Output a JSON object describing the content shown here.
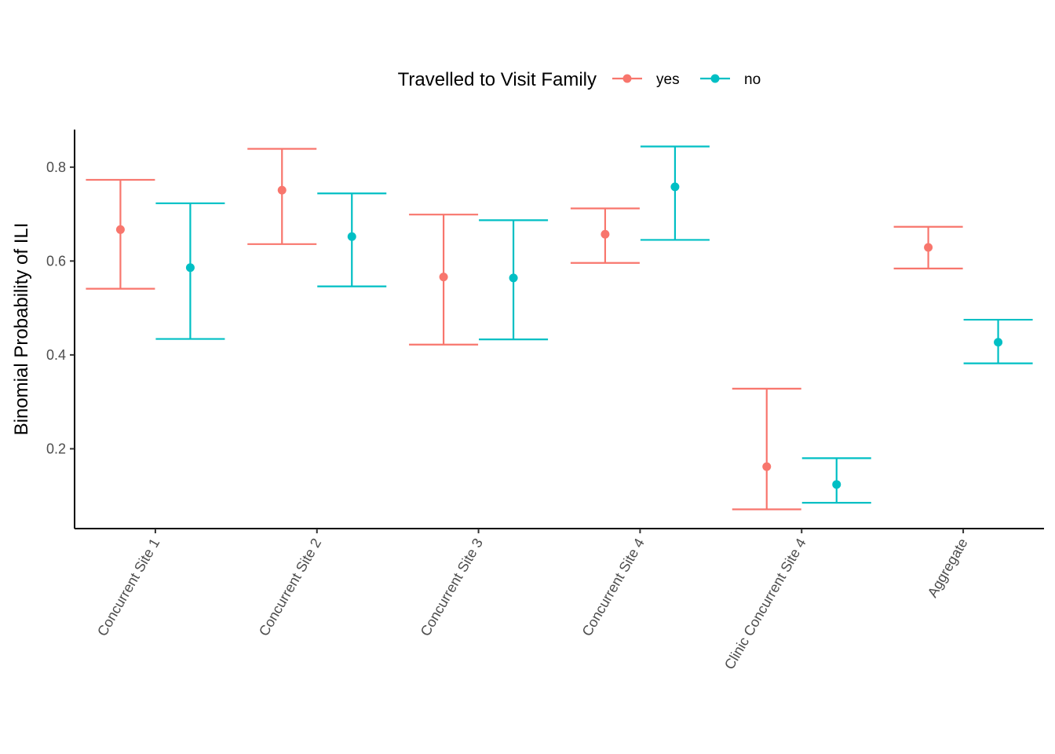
{
  "chart_data": {
    "type": "scatter",
    "subtype": "point-with-error-bars",
    "title": "",
    "xlabel": "",
    "ylabel": "Binomial Probability of ILI",
    "ylim": [
      0.03,
      0.88
    ],
    "yticks": [
      "0.2",
      "0.4",
      "0.6",
      "0.8"
    ],
    "grid": false,
    "legend": {
      "title": "Travelled to Visit Family",
      "position": "top"
    },
    "categories": [
      "Concurrent Site 1",
      "Concurrent Site 2",
      "Concurrent Site 3",
      "Concurrent Site 4",
      "Clinic Concurrent Site 4",
      "Aggregate"
    ],
    "series": [
      {
        "name": "yes",
        "color": "#F8766D",
        "values": [
          0.667,
          0.751,
          0.566,
          0.657,
          0.162,
          0.629
        ],
        "lower": [
          0.541,
          0.636,
          0.422,
          0.596,
          0.071,
          0.584
        ],
        "upper": [
          0.773,
          0.839,
          0.699,
          0.712,
          0.328,
          0.673
        ]
      },
      {
        "name": "no",
        "color": "#00BFC4",
        "values": [
          0.586,
          0.652,
          0.564,
          0.758,
          0.124,
          0.427
        ],
        "lower": [
          0.434,
          0.546,
          0.433,
          0.645,
          0.085,
          0.382
        ],
        "upper": [
          0.723,
          0.744,
          0.687,
          0.844,
          0.18,
          0.475
        ]
      }
    ]
  }
}
